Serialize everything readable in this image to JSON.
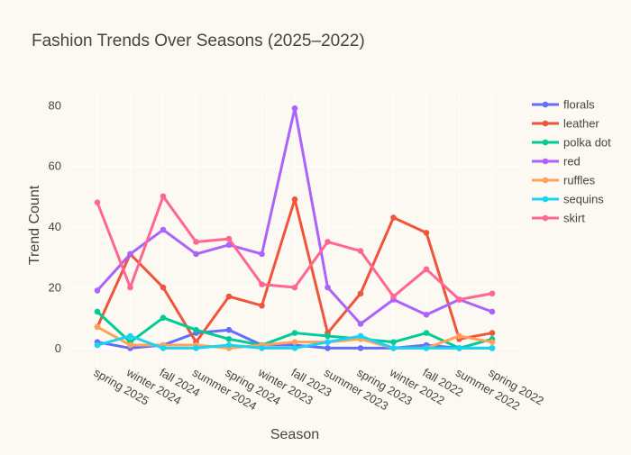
{
  "chart_data": {
    "type": "line",
    "title": "Fashion Trends Over Seasons (2025–2022)",
    "xlabel": "Season",
    "ylabel": "Trend Count",
    "ylim": [
      -7,
      85
    ],
    "yticks": [
      0,
      20,
      40,
      60,
      80
    ],
    "grid": true,
    "legend": "right",
    "categories": [
      "spring 2025",
      "winter 2024",
      "fall 2024",
      "summer 2024",
      "spring 2024",
      "winter 2023",
      "fall 2023",
      "summer 2023",
      "spring 2023",
      "winter 2022",
      "fall 2022",
      "summer 2022",
      "spring 2022"
    ],
    "series": [
      {
        "name": "florals",
        "color": "#636efa",
        "values": [
          2,
          0,
          1,
          5,
          6,
          1,
          1,
          0,
          0,
          0,
          1,
          0,
          0
        ]
      },
      {
        "name": "leather",
        "color": "#ef553b",
        "values": [
          7,
          31,
          20,
          2,
          17,
          14,
          49,
          5,
          18,
          43,
          38,
          3,
          5
        ]
      },
      {
        "name": "polka dot",
        "color": "#00cc96",
        "values": [
          12,
          2,
          10,
          6,
          3,
          1,
          5,
          4,
          3,
          2,
          5,
          0,
          3
        ]
      },
      {
        "name": "red",
        "color": "#ab63fa",
        "values": [
          19,
          31,
          39,
          31,
          34,
          31,
          79,
          20,
          8,
          16,
          11,
          16,
          12
        ]
      },
      {
        "name": "ruffles",
        "color": "#ffa15a",
        "values": [
          7,
          1,
          1,
          1,
          0,
          1,
          2,
          2,
          3,
          0,
          0,
          4,
          2
        ]
      },
      {
        "name": "sequins",
        "color": "#19d3f3",
        "values": [
          1,
          4,
          0,
          0,
          1,
          0,
          0,
          2,
          4,
          0,
          0,
          0,
          0
        ]
      },
      {
        "name": "skirt",
        "color": "#ff6692",
        "values": [
          48,
          20,
          50,
          35,
          36,
          21,
          20,
          35,
          32,
          17,
          26,
          16,
          18
        ]
      }
    ]
  }
}
